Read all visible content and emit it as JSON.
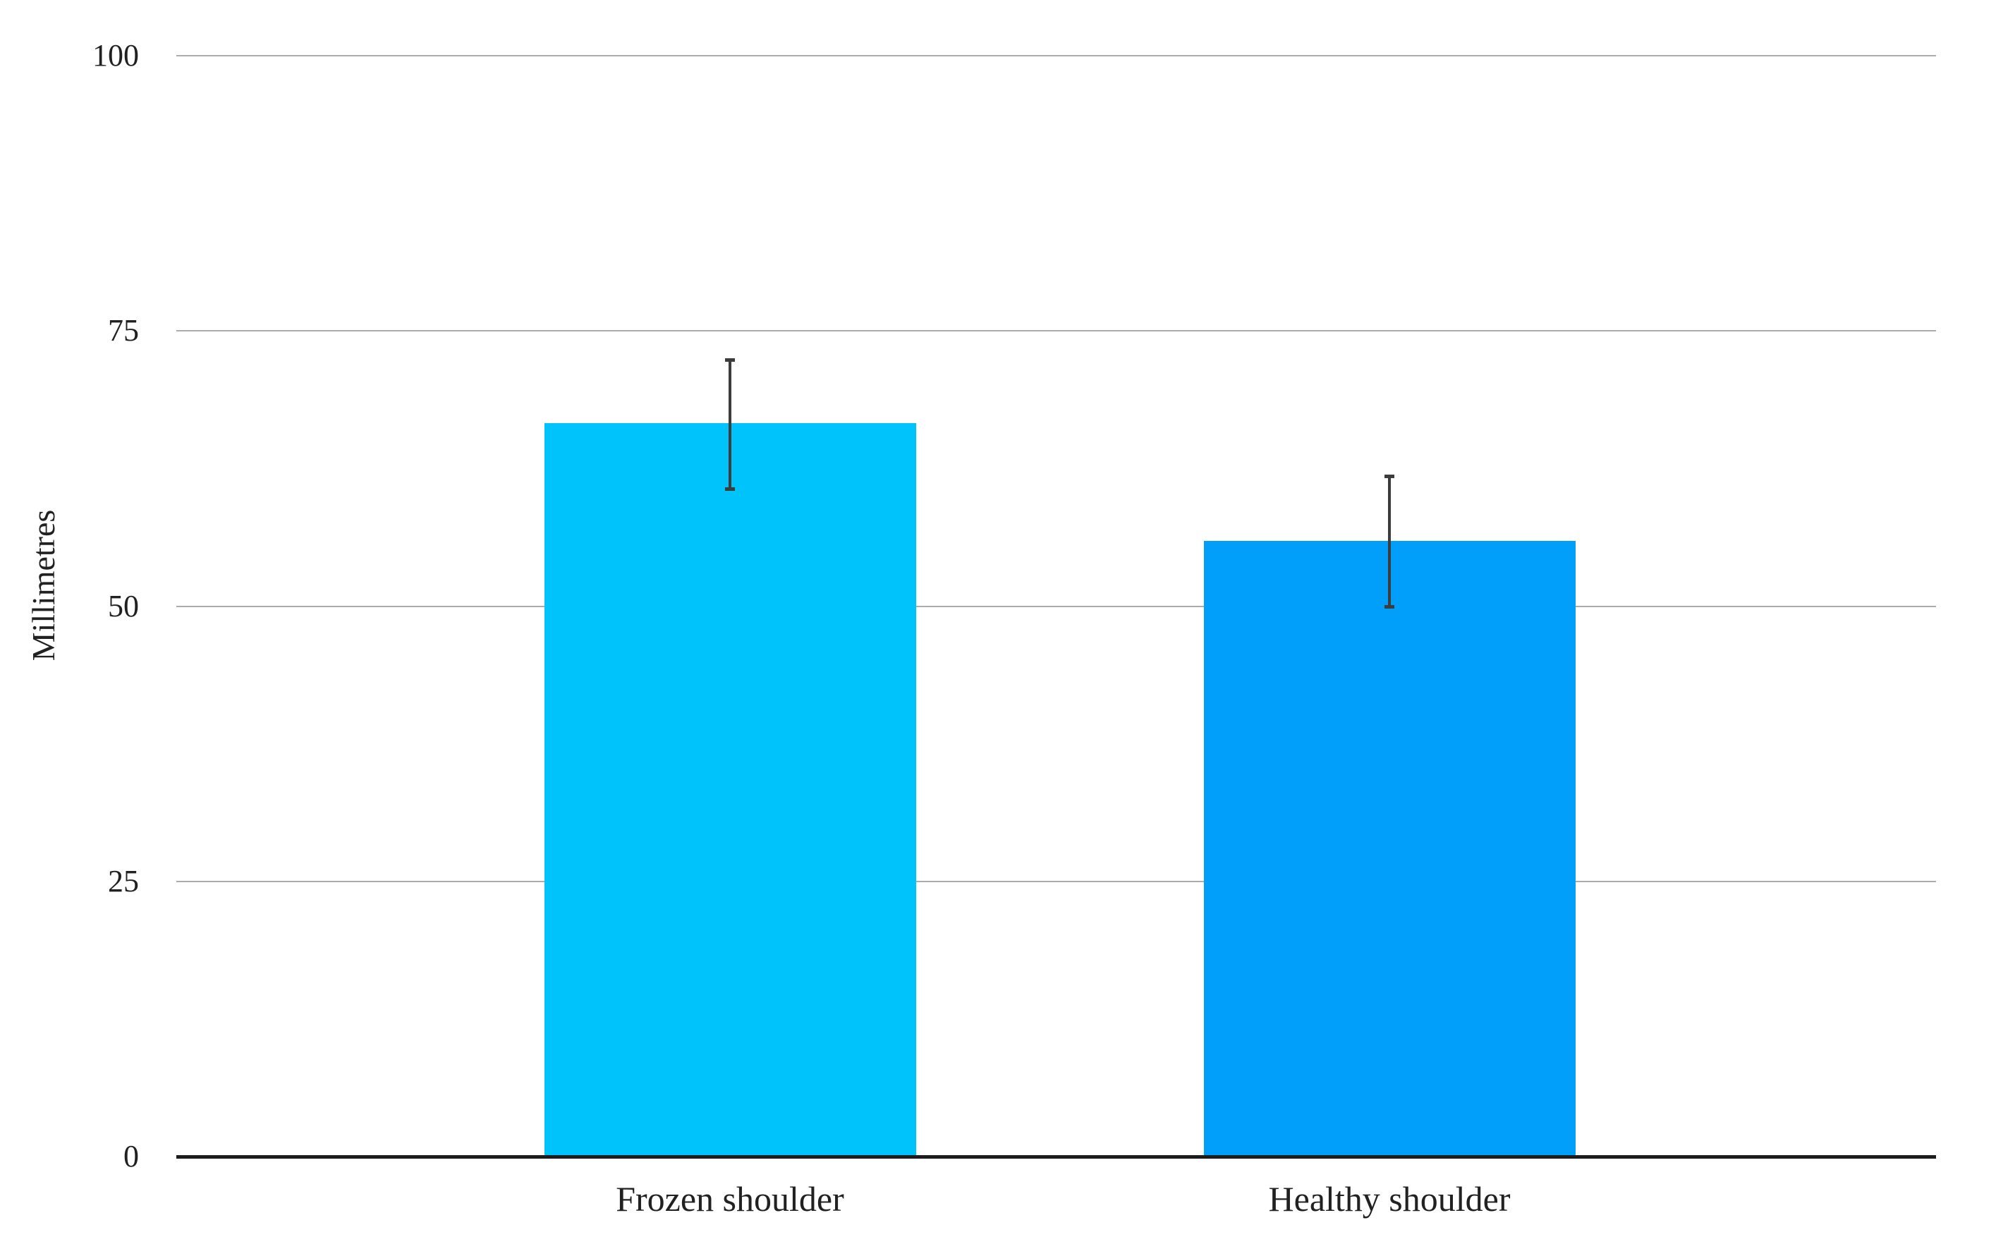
{
  "chart_data": {
    "type": "bar",
    "title": "",
    "categories": [
      "Frozen shoulder",
      "Healthy shoulder"
    ],
    "values": [
      66.6,
      55.9
    ],
    "error_bars": {
      "upper": [
        72.4,
        61.8
      ],
      "lower": [
        60.6,
        49.9
      ]
    },
    "xlabel": "",
    "ylabel": "Millimetres",
    "ylim": [
      0,
      100
    ],
    "yticks": [
      0,
      25,
      50,
      75,
      100
    ],
    "grid": "horizontal",
    "legend": "none",
    "bar_colors": [
      "#00C3FC",
      "#019FFA"
    ],
    "gridline_color": "#ACACAC",
    "axis_color": "#1C1C1C",
    "error_bar_color": "#3C3C3C",
    "text_color": "#212121"
  }
}
